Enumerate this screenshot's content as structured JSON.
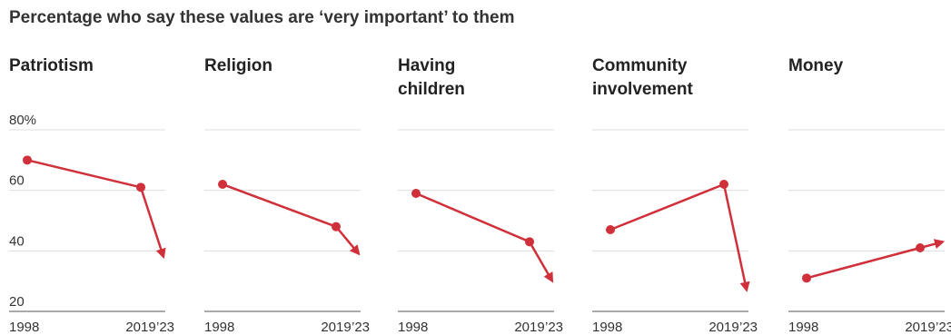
{
  "header": {
    "title": "Percentage who say these values are ‘very important’ to them"
  },
  "chart_data": {
    "type": "line",
    "ylim": [
      20,
      80
    ],
    "yticks": [
      20,
      40,
      60,
      80
    ],
    "ytick_labels": [
      "20",
      "40",
      "60",
      "80%"
    ],
    "grid": true,
    "x_labels": [
      "1998",
      "2019",
      "’23"
    ],
    "line_color": "#d0303a",
    "panels": [
      {
        "title_lines": [
          "Patriotism"
        ],
        "points": [
          {
            "x": "1998",
            "y": 70
          },
          {
            "x": "2019",
            "y": 61
          }
        ],
        "arrow_end": {
          "x": "2023",
          "y": 38
        }
      },
      {
        "title_lines": [
          "Religion"
        ],
        "points": [
          {
            "x": "1998",
            "y": 62
          },
          {
            "x": "2019",
            "y": 48
          }
        ],
        "arrow_end": {
          "x": "2023",
          "y": 39
        }
      },
      {
        "title_lines": [
          "Having",
          "children"
        ],
        "points": [
          {
            "x": "1998",
            "y": 59
          },
          {
            "x": "2019",
            "y": 43
          }
        ],
        "arrow_end": {
          "x": "2023",
          "y": 30
        }
      },
      {
        "title_lines": [
          "Community",
          "involvement"
        ],
        "points": [
          {
            "x": "1998",
            "y": 47
          },
          {
            "x": "2019",
            "y": 62
          }
        ],
        "arrow_end": {
          "x": "2023",
          "y": 27
        }
      },
      {
        "title_lines": [
          "Money"
        ],
        "points": [
          {
            "x": "1998",
            "y": 31
          },
          {
            "x": "2019",
            "y": 41
          }
        ],
        "arrow_end": {
          "x": "2023",
          "y": 43
        }
      }
    ]
  }
}
